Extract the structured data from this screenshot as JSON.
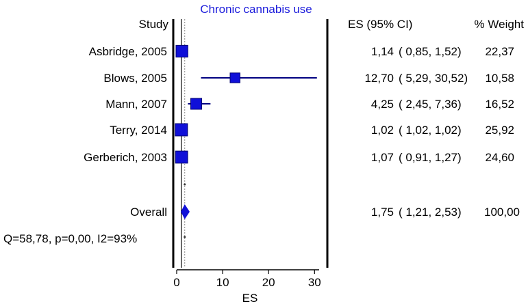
{
  "chart_data": {
    "type": "forest",
    "title": "Chronic cannabis use",
    "xlabel": "ES",
    "xlim": [
      0,
      31
    ],
    "x_ticks": [
      0,
      10,
      20,
      30
    ],
    "headers": {
      "study": "Study",
      "es": "ES (95% CI)",
      "weight": "% Weight"
    },
    "null_line": 1,
    "studies": [
      {
        "name": "Asbridge, 2005",
        "es": 1.14,
        "lo": 0.85,
        "hi": 1.52,
        "weight": 22.37,
        "es_text": "1,14",
        "ci_text": "( 0,85,  1,52)",
        "weight_text": "22,37"
      },
      {
        "name": "Blows, 2005",
        "es": 12.7,
        "lo": 5.29,
        "hi": 30.52,
        "weight": 10.58,
        "es_text": "12,70",
        "ci_text": "( 5,29, 30,52)",
        "weight_text": "10,58"
      },
      {
        "name": "Mann, 2007",
        "es": 4.25,
        "lo": 2.45,
        "hi": 7.36,
        "weight": 16.52,
        "es_text": "4,25",
        "ci_text": "( 2,45,  7,36)",
        "weight_text": "16,52"
      },
      {
        "name": "Terry, 2014",
        "es": 1.02,
        "lo": 1.02,
        "hi": 1.02,
        "weight": 25.92,
        "es_text": "1,02",
        "ci_text": "( 1,02,  1,02)",
        "weight_text": "25,92"
      },
      {
        "name": "Gerberich, 2003",
        "es": 1.07,
        "lo": 0.91,
        "hi": 1.27,
        "weight": 24.6,
        "es_text": "1,07",
        "ci_text": "( 0,91,  1,27)",
        "weight_text": "24,60"
      }
    ],
    "overall": {
      "label": "Overall",
      "es": 1.75,
      "lo": 1.21,
      "hi": 2.53,
      "es_text": "1,75",
      "ci_text": "( 1,21,  2,53)",
      "weight_text": "100,00"
    },
    "heterogeneity": "Q=58,78, p=0,00, I2=93%",
    "colors": {
      "marker": "#1010d8",
      "ci_line": "#000080",
      "diamond": "#1010d8",
      "title": "#1a1adb",
      "axis": "#000000",
      "null_line": "#888888"
    }
  }
}
